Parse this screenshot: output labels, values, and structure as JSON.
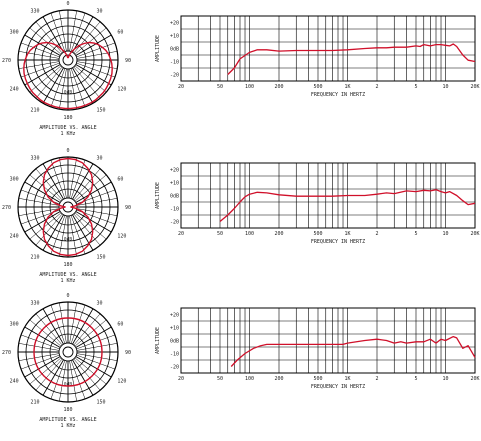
{
  "style": {
    "curve_color": "#d0102a",
    "grid_color": "#000000"
  },
  "polar_common": {
    "angle_labels": [
      "0",
      "30",
      "60",
      "90",
      "120",
      "150",
      "180",
      "210",
      "240",
      "270",
      "300",
      "330"
    ],
    "ring_label": "0dB",
    "caption": "AMPLITUDE VS. ANGLE",
    "frequency": "1 KHz"
  },
  "freq_common": {
    "xlabel": "FREQUENCY IN HERTZ",
    "ylabel": "AMPLITUDE",
    "x_ticks": [
      "20",
      "50",
      "100",
      "200",
      "500",
      "1K",
      "2",
      "5",
      "10",
      "20K"
    ],
    "y_ticks": [
      "+20",
      "+10",
      "0dB",
      "-10",
      "-20"
    ]
  },
  "chart_data": [
    {
      "type": "line",
      "title": "",
      "pattern": "cardioid",
      "polar_curve_r": [
        0.04,
        0.05,
        0.08,
        0.14,
        0.2,
        0.27,
        0.37,
        0.46,
        0.55,
        0.62,
        0.68,
        0.73,
        0.78,
        0.82,
        0.85,
        0.88,
        0.9,
        0.92,
        0.93,
        0.94,
        0.95,
        0.96,
        0.96,
        0.97,
        0.97,
        0.97,
        0.97,
        0.97,
        0.97,
        0.97,
        0.97,
        0.97,
        0.97,
        0.97,
        0.97,
        0.96,
        0.96,
        0.95,
        0.94,
        0.93,
        0.92,
        0.9,
        0.88,
        0.85,
        0.82,
        0.78,
        0.73,
        0.68,
        0.62,
        0.55,
        0.46,
        0.37,
        0.27,
        0.2,
        0.14,
        0.08,
        0.05,
        0.04
      ],
      "x": [
        60,
        70,
        80,
        100,
        120,
        150,
        200,
        300,
        500,
        700,
        1000,
        1500,
        2000,
        2500,
        3000,
        4000,
        5000,
        5500,
        6000,
        7000,
        8000,
        9000,
        10000,
        11000,
        12000,
        13000,
        15000,
        17000,
        20000
      ],
      "y": [
        -20,
        -15,
        -8,
        -3,
        -1,
        -1,
        -2,
        -1.5,
        -1.5,
        -1.5,
        -1,
        0,
        0.5,
        0.5,
        1,
        1,
        2,
        1.5,
        3,
        2,
        3,
        3,
        2.5,
        2,
        3.5,
        1.5,
        -5,
        -9,
        -10
      ],
      "xlim": [
        20,
        20000
      ],
      "ylim": [
        -25,
        25
      ],
      "xscale": "log"
    },
    {
      "type": "line",
      "title": "",
      "pattern": "figure-8",
      "polar_curve_r": [
        0.97,
        0.96,
        0.93,
        0.87,
        0.8,
        0.7,
        0.58,
        0.45,
        0.3,
        0.15,
        0.05,
        0.15,
        0.3,
        0.45,
        0.58,
        0.7,
        0.8,
        0.87,
        0.93,
        0.96,
        0.97,
        0.96,
        0.93,
        0.87,
        0.8,
        0.7,
        0.58,
        0.45,
        0.3,
        0.15,
        0.05,
        0.15,
        0.3,
        0.45,
        0.58,
        0.7,
        0.8,
        0.87,
        0.93,
        0.96,
        0.97
      ],
      "x": [
        50,
        60,
        70,
        80,
        90,
        100,
        120,
        150,
        200,
        300,
        500,
        700,
        1000,
        1500,
        2000,
        2500,
        3000,
        4000,
        5000,
        6000,
        7000,
        8000,
        9000,
        10000,
        11000,
        13000,
        15000,
        17000,
        20000
      ],
      "y": [
        -20,
        -15,
        -10,
        -5,
        -1,
        1,
        2.5,
        2,
        0.5,
        -0.5,
        -0.5,
        -0.5,
        0,
        0,
        1,
        2,
        1.5,
        3.5,
        3,
        4,
        3.5,
        4.5,
        3,
        2,
        3,
        0,
        -4,
        -7,
        -6
      ],
      "xlim": [
        20,
        20000
      ],
      "ylim": [
        -25,
        25
      ],
      "xscale": "log"
    },
    {
      "type": "line",
      "title": "",
      "pattern": "omnidirectional",
      "polar_curve_r": [
        0.68
      ],
      "x": [
        65,
        75,
        90,
        110,
        130,
        150,
        200,
        300,
        500,
        700,
        900,
        1000,
        1500,
        2000,
        2500,
        3000,
        3500,
        4000,
        5000,
        6000,
        7000,
        8000,
        9000,
        10000,
        12000,
        13000,
        15000,
        17000,
        20000
      ],
      "y": [
        -20,
        -15,
        -10,
        -6,
        -4,
        -3,
        -3,
        -3,
        -3,
        -3,
        -3,
        -2,
        0,
        1,
        0,
        -2,
        -1,
        -2,
        -1,
        -1,
        1,
        -2,
        1,
        0,
        3,
        2,
        -6,
        -4,
        -13
      ],
      "xlim": [
        20,
        20000
      ],
      "ylim": [
        -25,
        25
      ],
      "xscale": "log"
    }
  ]
}
